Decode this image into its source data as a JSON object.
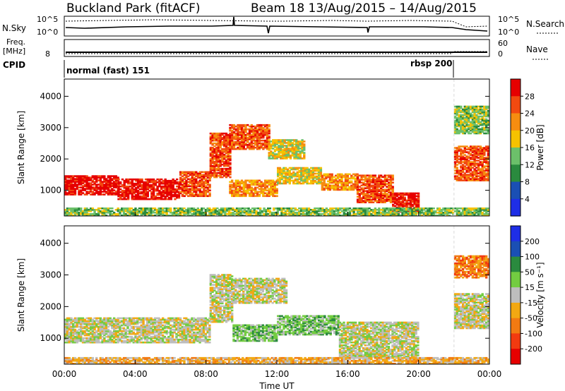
{
  "header": {
    "title": "Buckland Park (fitACF)",
    "subtitle": "Beam 18 13/Aug/2015 – 14/Aug/2015"
  },
  "noise_panel": {
    "left_label": "N.Sky",
    "right_label": "N.Search",
    "tick_top": "10^5",
    "tick_bottom": "10^0"
  },
  "freq_panel": {
    "left_label_line1": "Freq.",
    "left_label_line2": "[MHz]",
    "left_tick": "8",
    "right_label": "Nave",
    "right_tick_top": "60",
    "right_tick_bottom": "0"
  },
  "cpid_panel": {
    "label": "CPID",
    "mode1": "normal (fast) 151",
    "mode2": "rbsp 200",
    "mode2_start_hour": 22.0
  },
  "colors": {
    "power": [
      "#1e2ee6",
      "#1a4fb4",
      "#2a8a3e",
      "#6cc06a",
      "#f6c200",
      "#f68d10",
      "#f24a10",
      "#e60000"
    ],
    "velocity": [
      "#1e2ee6",
      "#1a4fb4",
      "#2a8a3e",
      "#73cc41",
      "#bdbdbd",
      "#f2a812",
      "#f27a12",
      "#f23a10",
      "#e60000"
    ]
  },
  "chart_data": [
    {
      "type": "heatmap",
      "name": "power",
      "ylabel": "Slant Range [km]",
      "yticks": [
        1000,
        2000,
        3000,
        4000
      ],
      "ylim": [
        180,
        4550
      ],
      "xlim": [
        0,
        24
      ],
      "colorbar_label": "Power [dB]",
      "colorbar_ticks": [
        "4",
        "8",
        "12",
        "16",
        "20",
        "24",
        "28"
      ],
      "bands": [
        {
          "x0": 0.0,
          "x1": 3.0,
          "r0": 850,
          "r1": 1450,
          "level": 7
        },
        {
          "x0": 3.0,
          "x1": 6.5,
          "r0": 700,
          "r1": 1350,
          "level": 7
        },
        {
          "x0": 6.5,
          "x1": 8.2,
          "r0": 800,
          "r1": 1600,
          "level": 6
        },
        {
          "x0": 8.2,
          "x1": 9.3,
          "r0": 1400,
          "r1": 2800,
          "level": 6
        },
        {
          "x0": 9.3,
          "x1": 11.5,
          "r0": 2300,
          "r1": 3100,
          "level": 6
        },
        {
          "x0": 11.5,
          "x1": 13.5,
          "r0": 2000,
          "r1": 2600,
          "level": 4
        },
        {
          "x0": 9.3,
          "x1": 12.0,
          "r0": 800,
          "r1": 1300,
          "level": 5
        },
        {
          "x0": 12.0,
          "x1": 14.5,
          "r0": 1200,
          "r1": 1700,
          "level": 4
        },
        {
          "x0": 14.5,
          "x1": 16.5,
          "r0": 1000,
          "r1": 1500,
          "level": 5
        },
        {
          "x0": 16.5,
          "x1": 18.5,
          "r0": 600,
          "r1": 1500,
          "level": 6
        },
        {
          "x0": 18.5,
          "x1": 20.0,
          "r0": 300,
          "r1": 900,
          "level": 7
        },
        {
          "x0": 22.0,
          "x1": 24.0,
          "r0": 1300,
          "r1": 2400,
          "level": 6
        },
        {
          "x0": 22.0,
          "x1": 24.0,
          "r0": 2800,
          "r1": 3700,
          "level": 3
        },
        {
          "x0": 0.0,
          "x1": 24.0,
          "r0": 180,
          "r1": 450,
          "level": 3
        }
      ]
    },
    {
      "type": "heatmap",
      "name": "velocity",
      "ylabel": "Slant Range [km]",
      "yticks": [
        1000,
        2000,
        3000,
        4000
      ],
      "ylim": [
        180,
        4550
      ],
      "xlim": [
        0,
        24
      ],
      "xlabel": "Time UT",
      "xticks": [
        "00:00",
        "04:00",
        "08:00",
        "12:00",
        "16:00",
        "20:00",
        "00:00"
      ],
      "colorbar_label": "Velocity [m s⁻¹]",
      "colorbar_ticks": [
        "200",
        "100",
        "50",
        "15",
        "-15",
        "-50",
        "-100",
        "-200"
      ],
      "bands": [
        {
          "x0": 0.0,
          "x1": 8.2,
          "r0": 850,
          "r1": 1650,
          "level": 4
        },
        {
          "x0": 8.2,
          "x1": 9.5,
          "r0": 1500,
          "r1": 3000,
          "level": 4
        },
        {
          "x0": 9.5,
          "x1": 12.5,
          "r0": 2100,
          "r1": 2900,
          "level": 4
        },
        {
          "x0": 9.5,
          "x1": 12.0,
          "r0": 900,
          "r1": 1400,
          "level": 3
        },
        {
          "x0": 12.0,
          "x1": 15.5,
          "r0": 1100,
          "r1": 1700,
          "level": 3
        },
        {
          "x0": 15.5,
          "x1": 20.0,
          "r0": 400,
          "r1": 1500,
          "level": 4
        },
        {
          "x0": 22.0,
          "x1": 24.0,
          "r0": 1300,
          "r1": 2400,
          "level": 4
        },
        {
          "x0": 22.0,
          "x1": 24.0,
          "r0": 2900,
          "r1": 3600,
          "level": 6
        },
        {
          "x0": 0.0,
          "x1": 24.0,
          "r0": 180,
          "r1": 400,
          "level": 5
        }
      ]
    }
  ]
}
